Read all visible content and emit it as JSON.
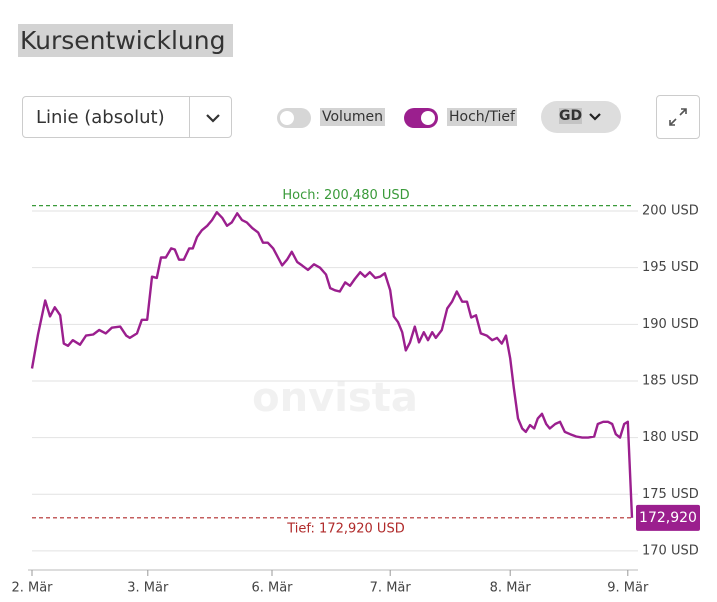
{
  "ui": {
    "title": "Kursentwicklung",
    "dropdown": "Linie (absolut)",
    "toggle_volume": "Volumen",
    "toggle_highlow": "Hoch/Tief",
    "button_gd": "GD",
    "watermark": "onvista"
  },
  "chart_data": {
    "type": "line",
    "x": [
      0,
      1,
      2.2,
      3,
      3.8,
      4.7,
      5.3,
      6,
      6.8,
      8,
      9,
      10.2,
      11.2,
      12.3,
      13.3,
      14.7,
      15.7,
      16.3,
      17.5,
      18.3,
      19.2,
      20,
      20.8,
      21.5,
      22.3,
      23.2,
      23.8,
      24.5,
      25.3,
      26.2,
      26.8,
      27.5,
      28.3,
      29.2,
      30,
      30.8,
      31.7,
      32.5,
      33.3,
      34.2,
      35,
      35.8,
      36.7,
      37.7,
      38.5,
      39.3,
      40.2,
      41,
      41.7,
      42.5,
      43.3,
      44.2,
      45,
      46,
      47,
      48,
      49,
      49.7,
      50.5,
      51.3,
      52.2,
      53,
      53.8,
      54.7,
      55.5,
      56.3,
      57.2,
      58,
      58.8,
      59.7,
      60.3,
      61,
      61.7,
      62.3,
      63,
      63.8,
      64.5,
      65.3,
      66,
      66.7,
      67.3,
      68.3,
      69.2,
      70,
      70.8,
      71.7,
      72.5,
      73.2,
      74,
      74.8,
      75.8,
      76.7,
      77.5,
      78.3,
      79,
      79.7,
      80.3,
      81,
      81.7,
      82.3,
      83,
      83.7,
      84.3,
      85,
      85.7,
      86.3,
      87.2,
      88,
      88.8,
      89.7,
      90.7,
      91.7,
      92.7,
      93.7,
      94.3,
      95.2,
      96,
      96.7,
      97.3,
      98,
      98.7,
      99.3,
      100
    ],
    "values": [
      186.1,
      189.1,
      192.1,
      190.7,
      191.5,
      190.8,
      188.3,
      188.1,
      188.6,
      188.2,
      189.0,
      189.1,
      189.5,
      189.2,
      189.7,
      189.8,
      189.0,
      188.8,
      189.2,
      190.4,
      190.4,
      194.2,
      194.1,
      195.9,
      195.9,
      196.7,
      196.6,
      195.7,
      195.7,
      196.7,
      196.7,
      197.7,
      198.3,
      198.7,
      199.2,
      199.9,
      199.4,
      198.7,
      199.0,
      199.8,
      199.2,
      199.0,
      198.5,
      198.1,
      197.2,
      197.2,
      196.7,
      195.9,
      195.2,
      195.7,
      196.4,
      195.5,
      195.2,
      194.8,
      195.3,
      195.0,
      194.4,
      193.2,
      193.0,
      192.9,
      193.7,
      193.4,
      194.0,
      194.6,
      194.2,
      194.6,
      194.1,
      194.2,
      194.5,
      193.0,
      190.7,
      190.2,
      189.3,
      187.7,
      188.4,
      189.8,
      188.4,
      189.3,
      188.6,
      189.3,
      188.8,
      189.5,
      191.4,
      192.0,
      192.9,
      192.0,
      192.0,
      190.6,
      190.8,
      189.2,
      189.0,
      188.6,
      188.8,
      188.3,
      189.0,
      187.0,
      184.4,
      181.7,
      180.8,
      180.5,
      181.1,
      180.8,
      181.7,
      182.1,
      181.2,
      180.8,
      181.2,
      181.4,
      180.5,
      180.3,
      180.1,
      180.0,
      180.0,
      180.1,
      181.2,
      181.4,
      181.4,
      181.2,
      180.3,
      180.0,
      181.2,
      181.4,
      172.92
    ],
    "color": "#9b1f8e",
    "xlim": [
      0,
      100
    ],
    "xticks": [
      {
        "value": 0,
        "label": "2. Mär"
      },
      {
        "value": 19.3,
        "label": "3. Mär"
      },
      {
        "value": 40,
        "label": "6. Mär"
      },
      {
        "value": 59.7,
        "label": "7. Mär"
      },
      {
        "value": 79.7,
        "label": "8. Mär"
      },
      {
        "value": 99.3,
        "label": "9. Mär"
      }
    ],
    "ylim": [
      168.8,
      201.9
    ],
    "yticks": [
      {
        "value": 170,
        "label": "170 USD"
      },
      {
        "value": 175,
        "label": "175 USD"
      },
      {
        "value": 180,
        "label": "180 USD"
      },
      {
        "value": 185,
        "label": "185 USD"
      },
      {
        "value": 190,
        "label": "190 USD"
      },
      {
        "value": 195,
        "label": "195 USD"
      },
      {
        "value": 200,
        "label": "200 USD"
      }
    ],
    "grid": true,
    "high": {
      "value": 200.48,
      "label": "Hoch: 200,480 USD",
      "color": "#3a9a3a"
    },
    "low": {
      "value": 172.92,
      "label": "Tief: 172,920 USD",
      "color": "#b02a2a"
    },
    "last": {
      "value": 172.92,
      "label": "172,920"
    }
  }
}
